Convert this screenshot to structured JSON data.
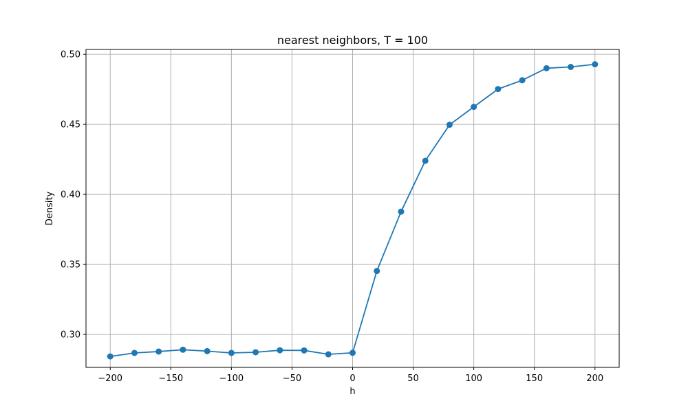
{
  "chart_data": {
    "type": "line",
    "title": "nearest neighbors, T = 100",
    "xlabel": "h",
    "ylabel": "Density",
    "xlim": [
      -220,
      220
    ],
    "ylim": [
      0.2765,
      0.5035
    ],
    "xticks": [
      -200,
      -150,
      -100,
      -50,
      0,
      50,
      100,
      150,
      200
    ],
    "xtick_labels": [
      "−200",
      "−150",
      "−100",
      "−50",
      "0",
      "50",
      "100",
      "150",
      "200"
    ],
    "yticks": [
      0.3,
      0.35,
      0.4,
      0.45,
      0.5
    ],
    "ytick_labels": [
      "0.30",
      "0.35",
      "0.40",
      "0.45",
      "0.50"
    ],
    "grid": true,
    "series": [
      {
        "color": "#1f77b4",
        "marker": "circle",
        "x": [
          -200,
          -180,
          -160,
          -140,
          -120,
          -100,
          -80,
          -60,
          -40,
          -20,
          0,
          20,
          40,
          60,
          80,
          100,
          120,
          140,
          160,
          180,
          200
        ],
        "y": [
          0.2843,
          0.2868,
          0.2878,
          0.2891,
          0.2881,
          0.2868,
          0.2873,
          0.2887,
          0.2886,
          0.2858,
          0.2869,
          0.3453,
          0.3877,
          0.424,
          0.4497,
          0.4625,
          0.4752,
          0.4815,
          0.4901,
          0.491,
          0.4929
        ]
      }
    ]
  }
}
